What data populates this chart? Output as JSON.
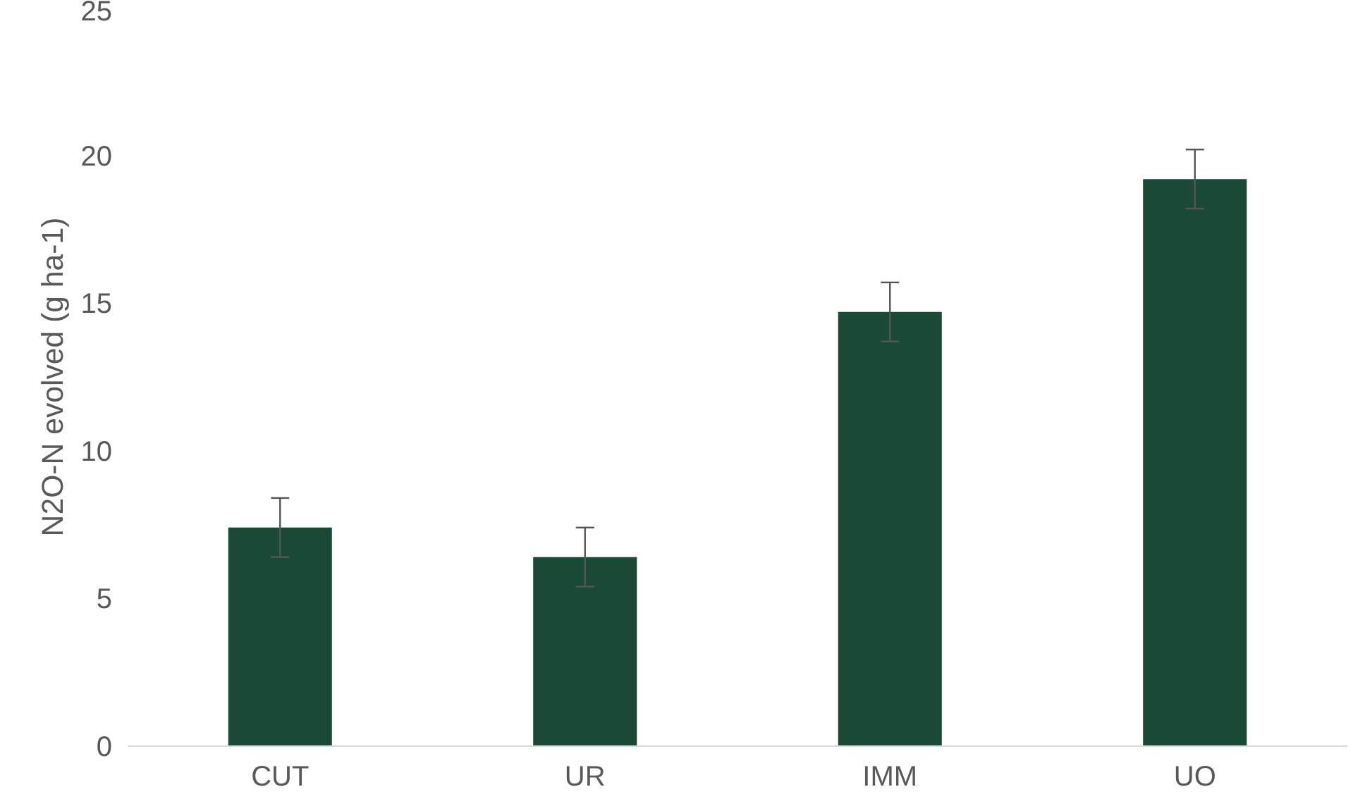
{
  "chart_data": {
    "type": "bar",
    "ylabel": "N2O-N evolved (g ha-1)",
    "categories": [
      "CUT",
      "UR",
      "IMM",
      "UO"
    ],
    "values": [
      7.4,
      6.4,
      14.7,
      19.2
    ],
    "errors": [
      1.0,
      1.0,
      1.0,
      1.0
    ],
    "color": "#1a4a36",
    "ylim": [
      0,
      25
    ],
    "yticks": [
      0,
      5,
      10,
      15,
      20,
      25
    ],
    "grid": false
  }
}
